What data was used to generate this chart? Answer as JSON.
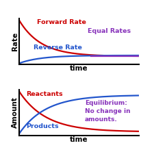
{
  "bg_color": "#ffffff",
  "top_ylabel": "Rate",
  "bottom_ylabel": "Amount",
  "xlabel": "time",
  "forward_rate_label": "Forward Rate",
  "reverse_rate_label": "Reverse Rate",
  "equal_rates_label": "Equal Rates",
  "reactants_label": "Reactants",
  "products_label": "Products",
  "equilibrium_label": "Equilibrium:\nNo change in\namounts.",
  "red_color": "#cc0000",
  "blue_color": "#2255cc",
  "purple_color": "#8833bb",
  "label_fontsize": 6.8,
  "axis_label_fontsize": 7.5,
  "eq_text_fontsize": 6.5,
  "line_width": 1.6,
  "eq_xstart": 0.6
}
